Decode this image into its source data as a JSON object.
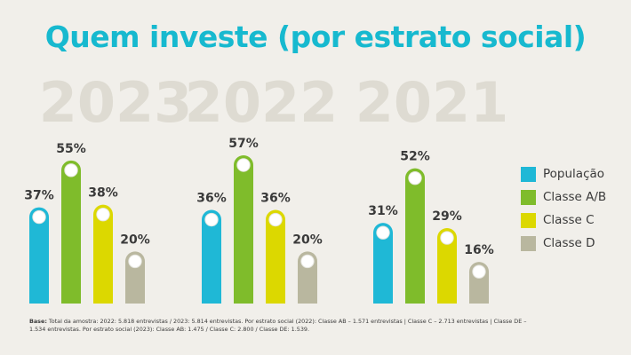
{
  "title": "Quem investe (por estrato social)",
  "colors": {
    "background": "#f1efea",
    "title": "#17b9cf",
    "year_watermark": "#dedbd2",
    "value_label": "#3a3a3a"
  },
  "chart_data": {
    "type": "bar",
    "title": "Quem investe (por estrato social)",
    "unit": "%",
    "ylim": [
      0,
      60
    ],
    "groups": [
      "2023",
      "2022",
      "2021"
    ],
    "series": [
      {
        "name": "População",
        "color": "#1fb8d6",
        "values": [
          37,
          36,
          31
        ]
      },
      {
        "name": "Classe A/B",
        "color": "#7fbc2b",
        "values": [
          55,
          57,
          52
        ]
      },
      {
        "name": "Classe C",
        "color": "#dcd800",
        "values": [
          38,
          36,
          29
        ]
      },
      {
        "name": "Classe D",
        "color": "#b9b79f",
        "values": [
          20,
          20,
          16
        ]
      }
    ],
    "value_labels": [
      [
        "37%",
        "55%",
        "38%",
        "20%"
      ],
      [
        "36%",
        "57%",
        "36%",
        "20%"
      ],
      [
        "31%",
        "52%",
        "29%",
        "16%"
      ]
    ],
    "legend_position": "right",
    "grid": false
  },
  "footnote": {
    "label": "Base:",
    "text": " Total da amostra: 2022: 5.818 entrevistas / 2023: 5.814 entrevistas. Por estrato social (2022): Classe AB – 1.571 entrevistas | Classe C – 2.713 entrevistas | Classe DE – 1.534 entrevistas. Por estrato social (2023): Classe AB: 1.475 / Classe C: 2.800 / Classe DE: 1.539."
  }
}
